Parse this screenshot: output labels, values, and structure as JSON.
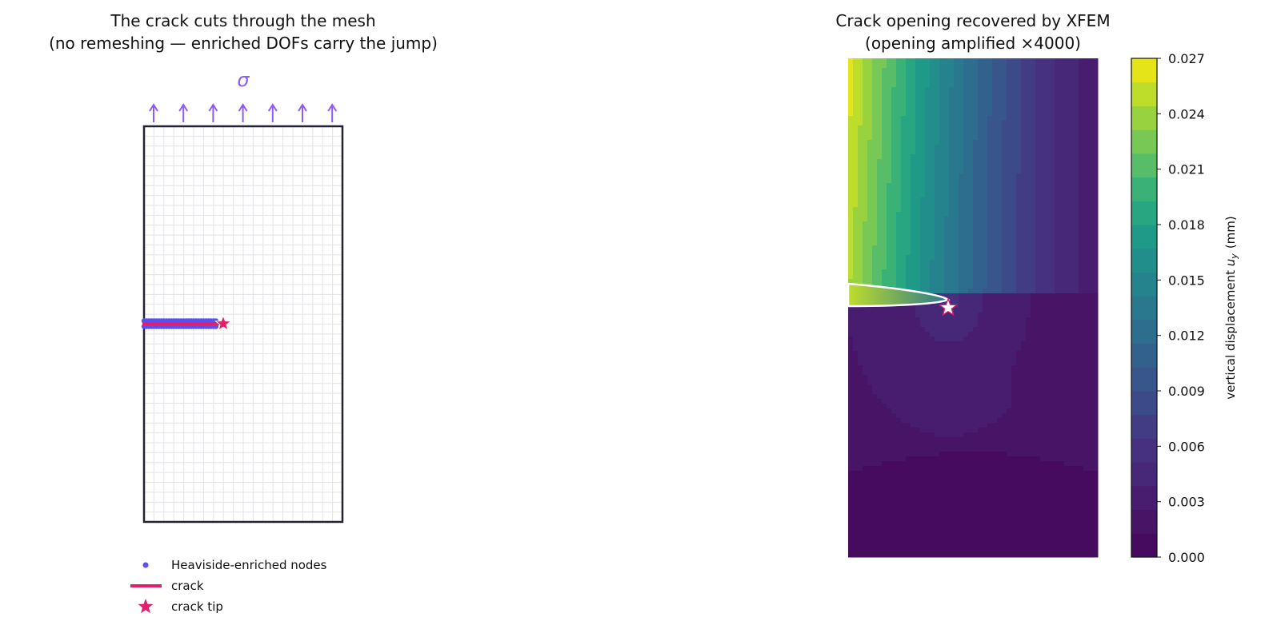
{
  "chart_data": [
    {
      "type": "mesh",
      "title": "The crack cuts through the mesh",
      "subtitle": "(no remeshing — enriched DOFs carry the jump)",
      "load_label": "σ",
      "legend": [
        {
          "name": "Heaviside-enriched nodes",
          "color": "#5b4ff0"
        },
        {
          "name": "crack",
          "color": "#e0206a"
        },
        {
          "name": "crack tip",
          "color": "#e0206a"
        }
      ]
    },
    {
      "type": "contour",
      "title": "Crack opening recovered by XFEM",
      "subtitle": "(opening amplified ×4000)",
      "colorbar_label": {
        "text": "vertical displacement",
        "symbol": "u",
        "subscript": "y",
        "unit": "(mm)"
      },
      "clim": [
        0,
        0.027
      ],
      "cticks": [
        {
          "value": 0,
          "label": "0.000"
        },
        {
          "value": 0.003,
          "label": "0.003"
        },
        {
          "value": 0.006,
          "label": "0.006"
        },
        {
          "value": 0.009,
          "label": "0.009"
        },
        {
          "value": 0.012,
          "label": "0.012"
        },
        {
          "value": 0.015,
          "label": "0.015"
        },
        {
          "value": 0.018,
          "label": "0.018"
        },
        {
          "value": 0.021,
          "label": "0.021"
        },
        {
          "value": 0.024,
          "label": "0.024"
        },
        {
          "value": 0.027,
          "label": "0.027"
        }
      ],
      "colors": [
        "#460b5e",
        "#471466",
        "#481d6f",
        "#472777",
        "#45317f",
        "#423c85",
        "#3d4a89",
        "#38568c",
        "#33618d",
        "#2d6d8e",
        "#29788e",
        "#25838e",
        "#218e8c",
        "#1f9a88",
        "#28a681",
        "#3ab277",
        "#57bd68",
        "#77c855",
        "#99d23f",
        "#bedd2a",
        "#e4e419"
      ]
    }
  ]
}
